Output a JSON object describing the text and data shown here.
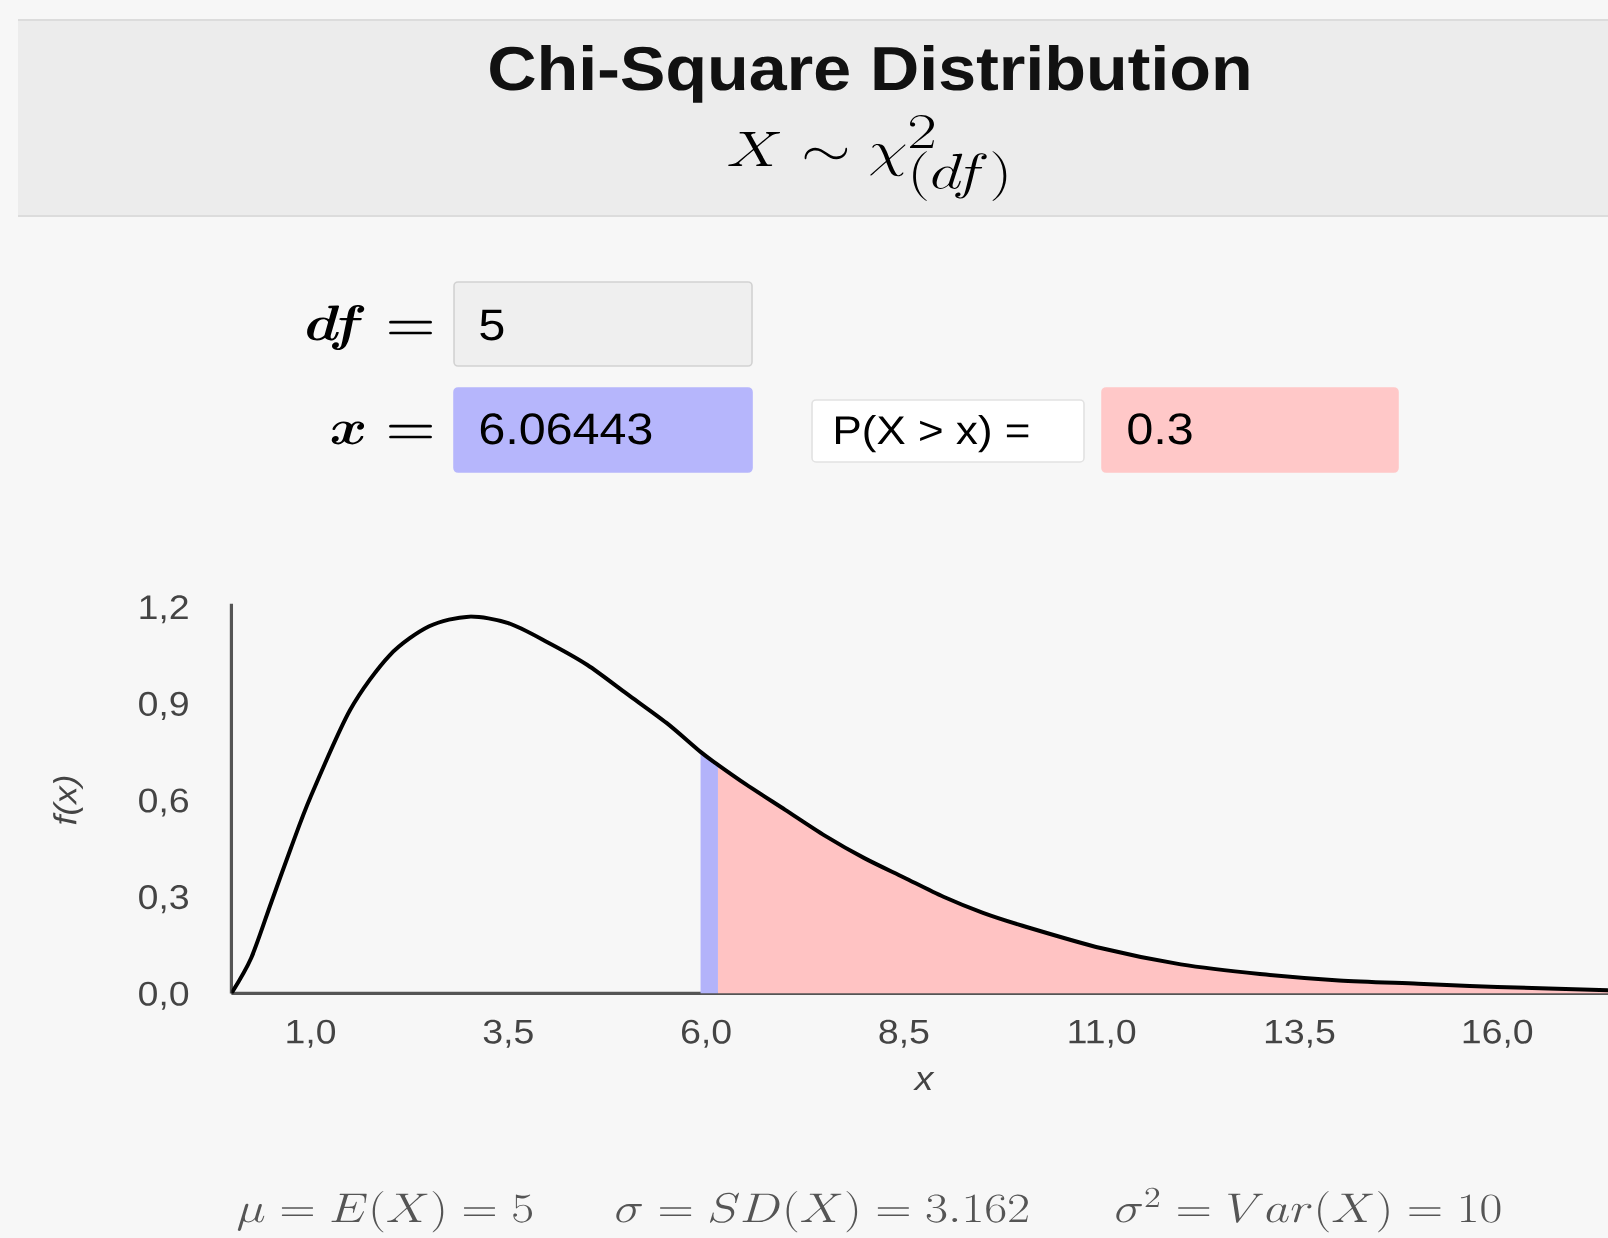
{
  "chart_data": {
    "type": "line",
    "title": "Chi-Square Distribution",
    "subtitle": "X \\sim \\chi^2_{(df)}",
    "xlabel": "x",
    "ylabel": "f(x)",
    "xlim": [
      0,
      17.4
    ],
    "ylim": [
      0,
      1.21
    ],
    "xticks": [
      {
        "value": 1,
        "label": "1,0"
      },
      {
        "value": 3.5,
        "label": "3,5"
      },
      {
        "value": 6,
        "label": "6,0"
      },
      {
        "value": 8.5,
        "label": "8,5"
      },
      {
        "value": 11,
        "label": "11,0"
      },
      {
        "value": 13.5,
        "label": "13,5"
      },
      {
        "value": 16,
        "label": "16,0"
      }
    ],
    "yticks": [
      {
        "value": 0,
        "label": "0,0"
      },
      {
        "value": 0.3,
        "label": "0,3"
      },
      {
        "value": 0.6,
        "label": "0,6"
      },
      {
        "value": 0.9,
        "label": "0,9"
      },
      {
        "value": 1.2,
        "label": "1,2"
      }
    ],
    "series": [
      {
        "type": "area",
        "color": "#ffc3c3",
        "x": [
          6.15,
          6.5,
          7.0,
          7.5,
          8.0,
          8.5,
          9.0,
          9.5,
          10.0,
          11.0,
          12.0,
          13.0,
          14.0,
          15.0,
          16.0,
          17.4
        ],
        "values": [
          0.71,
          0.65,
          0.57,
          0.49,
          0.42,
          0.36,
          0.3,
          0.25,
          0.21,
          0.14,
          0.09,
          0.06,
          0.04,
          0.03,
          0.02,
          0.01
        ]
      },
      {
        "type": "area",
        "color": "#b3b3fa",
        "x": [
          5.93,
          6.04,
          6.15
        ],
        "values": [
          0.75,
          0.73,
          0.71
        ]
      },
      {
        "color": "#000000",
        "x": [
          0,
          0.25,
          0.5,
          0.75,
          1.0,
          1.5,
          2.0,
          2.5,
          3.0,
          3.5,
          4.0,
          4.5,
          5.0,
          5.5,
          5.93,
          6.15,
          6.5,
          7.0,
          7.5,
          8.0,
          8.5,
          9.0,
          9.5,
          10.0,
          11.0,
          12.0,
          13.0,
          14.0,
          15.0,
          16.0,
          17.4
        ],
        "values": [
          0,
          0.11,
          0.28,
          0.45,
          0.61,
          0.88,
          1.05,
          1.14,
          1.17,
          1.15,
          1.09,
          1.02,
          0.93,
          0.84,
          0.75,
          0.71,
          0.65,
          0.57,
          0.49,
          0.42,
          0.36,
          0.3,
          0.25,
          0.21,
          0.14,
          0.09,
          0.06,
          0.04,
          0.03,
          0.02,
          0.01
        ]
      }
    ],
    "annotations": [
      "df =",
      "5",
      "x =",
      "6.06443",
      "P(X > x) =",
      "0.3",
      "\\mu = E(X) = 5",
      "\\sigma = SD(X) = 3.162",
      "\\sigma^2 = Var(X) = 10"
    ]
  }
}
